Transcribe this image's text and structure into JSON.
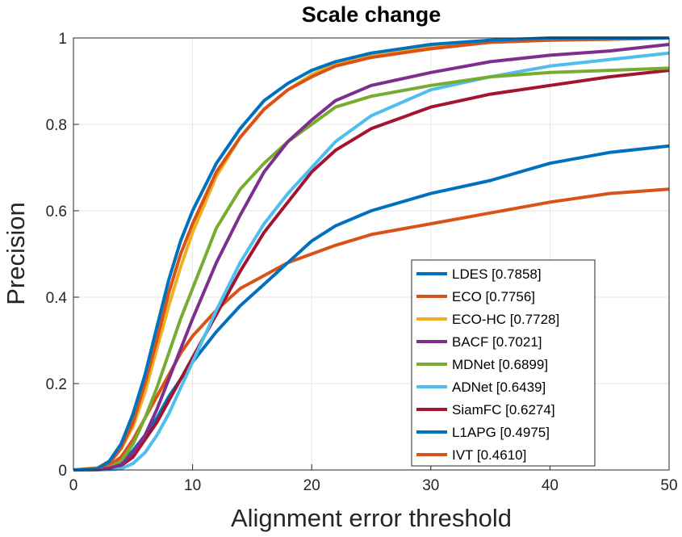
{
  "chart_data": {
    "type": "line",
    "title": "Scale change",
    "xlabel": "Alignment error threshold",
    "ylabel": "Precision",
    "xlim": [
      0,
      50
    ],
    "ylim": [
      0,
      1
    ],
    "xticks": [
      "0",
      "10",
      "20",
      "30",
      "40",
      "50"
    ],
    "yticks": [
      "0",
      "0.2",
      "0.4",
      "0.6",
      "0.8",
      "1"
    ],
    "grid": true,
    "legend_position": "bottom-right",
    "x": [
      0,
      2,
      3,
      4,
      5,
      6,
      7,
      8,
      9,
      10,
      12,
      14,
      16,
      18,
      20,
      22,
      25,
      30,
      35,
      40,
      45,
      50
    ],
    "series": [
      {
        "name": "LDES [0.7858]",
        "color": "#0072BD",
        "values": [
          0,
          0.003,
          0.02,
          0.06,
          0.13,
          0.22,
          0.33,
          0.44,
          0.53,
          0.6,
          0.71,
          0.79,
          0.855,
          0.895,
          0.925,
          0.945,
          0.965,
          0.985,
          0.995,
          1.0,
          1.0,
          1.0
        ]
      },
      {
        "name": "ECO [0.7756]",
        "color": "#D95319",
        "values": [
          0,
          0.003,
          0.015,
          0.05,
          0.11,
          0.2,
          0.3,
          0.41,
          0.5,
          0.57,
          0.69,
          0.77,
          0.835,
          0.88,
          0.91,
          0.935,
          0.955,
          0.975,
          0.99,
          0.995,
          0.997,
          1.0
        ]
      },
      {
        "name": "ECO-HC [0.7728]",
        "color": "#EDB120",
        "values": [
          0,
          0.005,
          0.02,
          0.05,
          0.1,
          0.18,
          0.28,
          0.38,
          0.47,
          0.55,
          0.68,
          0.77,
          0.835,
          0.88,
          0.915,
          0.94,
          0.96,
          0.98,
          0.99,
          0.995,
          0.998,
          1.0
        ]
      },
      {
        "name": "BACF [0.7021]",
        "color": "#7E2F8E",
        "values": [
          0,
          0.001,
          0.004,
          0.012,
          0.04,
          0.08,
          0.14,
          0.21,
          0.28,
          0.35,
          0.48,
          0.59,
          0.69,
          0.76,
          0.81,
          0.855,
          0.89,
          0.92,
          0.945,
          0.96,
          0.97,
          0.985
        ]
      },
      {
        "name": "MDNet [0.6899]",
        "color": "#77AC30",
        "values": [
          0,
          0.001,
          0.006,
          0.02,
          0.06,
          0.12,
          0.19,
          0.27,
          0.35,
          0.42,
          0.56,
          0.65,
          0.71,
          0.76,
          0.8,
          0.84,
          0.865,
          0.89,
          0.91,
          0.92,
          0.925,
          0.93
        ]
      },
      {
        "name": "ADNet [0.6439]",
        "color": "#4DBEEE",
        "values": [
          0,
          0,
          0.001,
          0.003,
          0.015,
          0.04,
          0.08,
          0.13,
          0.19,
          0.25,
          0.37,
          0.48,
          0.57,
          0.64,
          0.7,
          0.76,
          0.82,
          0.88,
          0.91,
          0.935,
          0.95,
          0.965
        ]
      },
      {
        "name": "SiamFC [0.6274]",
        "color": "#A2142F",
        "values": [
          0,
          0.001,
          0.003,
          0.01,
          0.03,
          0.07,
          0.11,
          0.16,
          0.21,
          0.26,
          0.36,
          0.46,
          0.55,
          0.62,
          0.69,
          0.74,
          0.79,
          0.84,
          0.87,
          0.89,
          0.91,
          0.925
        ]
      },
      {
        "name": "L1APG [0.4975]",
        "color": "#0072BD",
        "values": [
          0,
          0.001,
          0.005,
          0.015,
          0.045,
          0.08,
          0.12,
          0.17,
          0.21,
          0.25,
          0.32,
          0.38,
          0.43,
          0.48,
          0.53,
          0.565,
          0.6,
          0.64,
          0.67,
          0.71,
          0.735,
          0.75
        ]
      },
      {
        "name": "IVT [0.4610]",
        "color": "#D95319",
        "values": [
          0,
          0.002,
          0.01,
          0.03,
          0.07,
          0.12,
          0.17,
          0.22,
          0.27,
          0.31,
          0.37,
          0.42,
          0.45,
          0.48,
          0.5,
          0.52,
          0.545,
          0.57,
          0.595,
          0.62,
          0.64,
          0.65
        ]
      }
    ]
  }
}
